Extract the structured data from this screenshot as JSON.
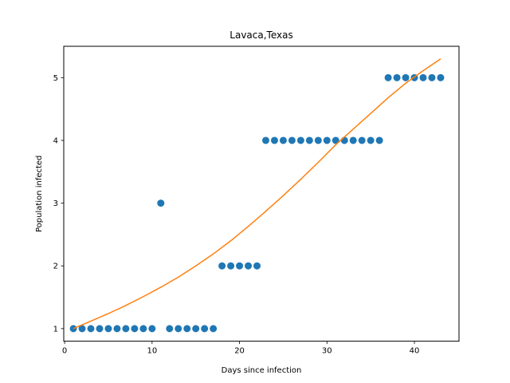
{
  "chart_data": {
    "type": "scatter",
    "title": "Lavaca,Texas",
    "xlabel": "Days since infection",
    "ylabel": "Population infected",
    "xlim": [
      -0.1,
      45.1
    ],
    "ylim": [
      0.8,
      5.5
    ],
    "xticks": [
      0,
      10,
      20,
      30,
      40
    ],
    "yticks": [
      1,
      2,
      3,
      4,
      5
    ],
    "grid": false,
    "series": [
      {
        "kind": "scatter",
        "color": "#1f77b4",
        "x": [
          1,
          2,
          3,
          4,
          5,
          6,
          7,
          8,
          9,
          10,
          11,
          12,
          13,
          14,
          15,
          16,
          17,
          18,
          19,
          20,
          21,
          22,
          23,
          24,
          25,
          26,
          27,
          28,
          29,
          30,
          31,
          32,
          33,
          34,
          35,
          36,
          37,
          38,
          39,
          40,
          41,
          42,
          43
        ],
        "y": [
          1,
          1,
          1,
          1,
          1,
          1,
          1,
          1,
          1,
          1,
          3,
          1,
          1,
          1,
          1,
          1,
          1,
          2,
          2,
          2,
          2,
          2,
          4,
          4,
          4,
          4,
          4,
          4,
          4,
          4,
          4,
          4,
          4,
          4,
          4,
          4,
          5,
          5,
          5,
          5,
          5,
          5,
          5
        ]
      },
      {
        "kind": "line",
        "color": "#ff7f0e",
        "x": [
          1,
          3,
          5,
          7,
          9,
          11,
          13,
          15,
          17,
          19,
          21,
          23,
          25,
          27,
          29,
          31,
          33,
          35,
          37,
          39,
          41,
          43
        ],
        "y": [
          1.0,
          1.12,
          1.24,
          1.37,
          1.51,
          1.66,
          1.82,
          2.0,
          2.19,
          2.4,
          2.63,
          2.87,
          3.12,
          3.38,
          3.65,
          3.93,
          4.18,
          4.43,
          4.68,
          4.91,
          5.11,
          5.3
        ]
      }
    ]
  }
}
